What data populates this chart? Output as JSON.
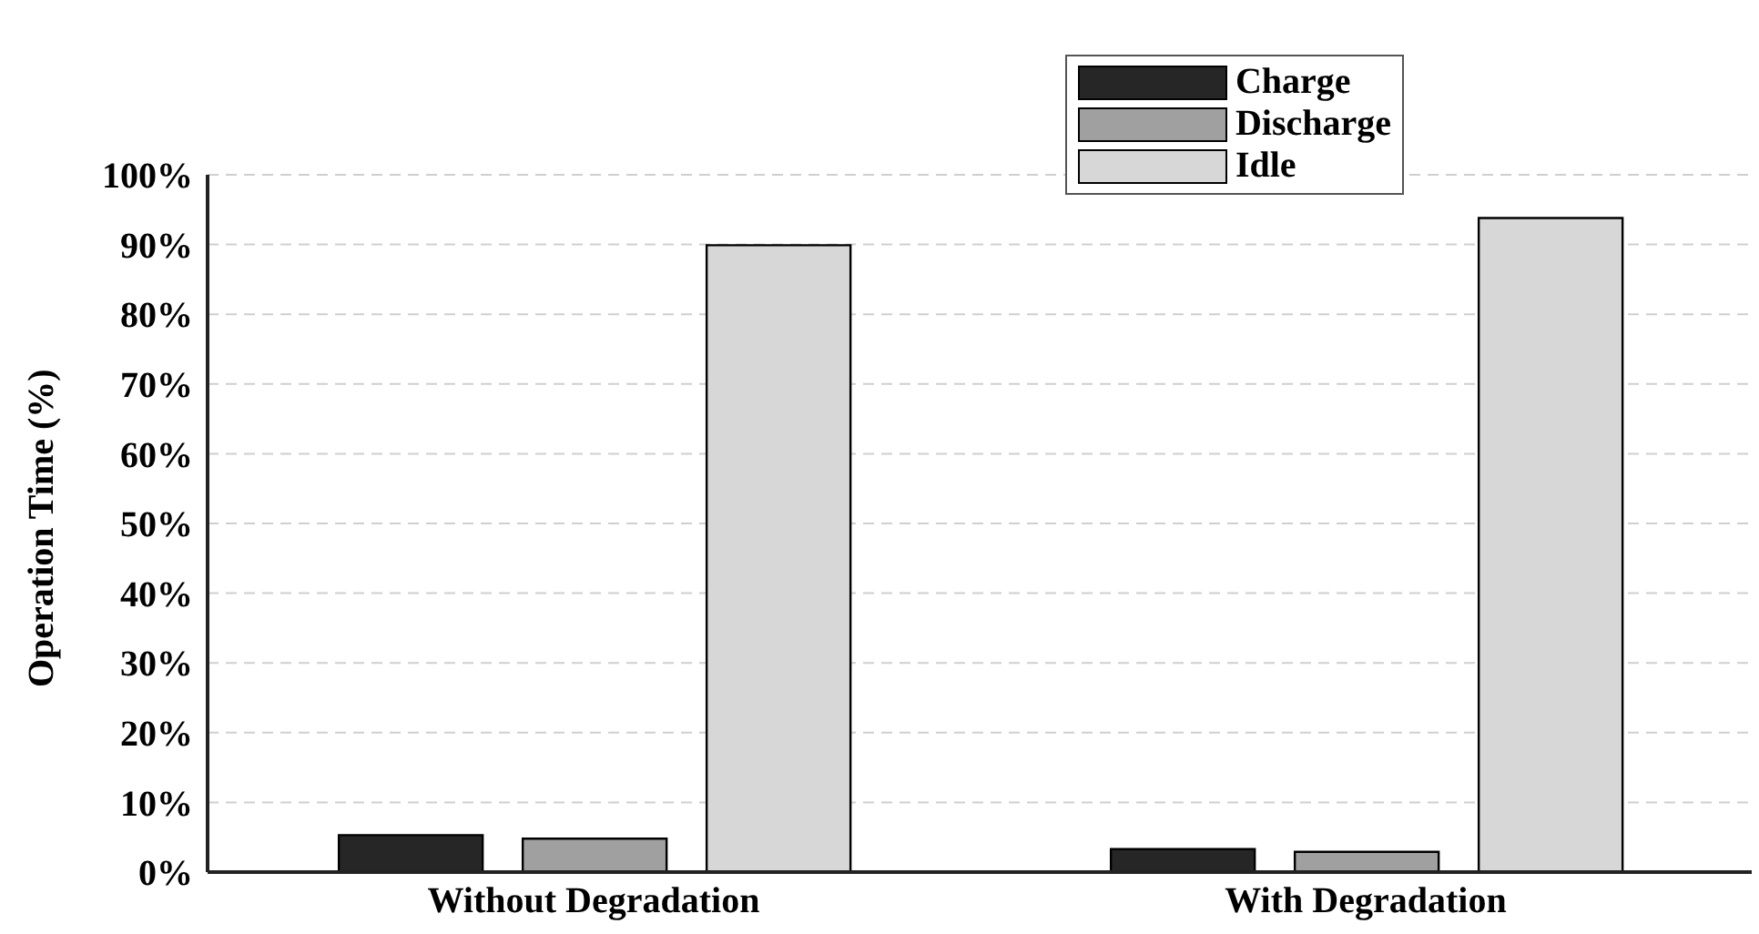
{
  "chart_data": {
    "type": "bar",
    "ylabel": "Operation Time (%)",
    "categories": [
      "Without Degradation",
      "With Degradation"
    ],
    "series": [
      {
        "name": "Charge",
        "color": "#262626",
        "values": [
          5.3,
          3.3
        ]
      },
      {
        "name": "Discharge",
        "color": "#a0a0a0",
        "values": [
          4.8,
          2.9
        ]
      },
      {
        "name": "Idle",
        "color": "#d7d7d7",
        "values": [
          89.9,
          93.8
        ]
      }
    ],
    "ylim": [
      0,
      100
    ],
    "yticks": [
      {
        "value": 0,
        "label": "0%"
      },
      {
        "value": 10,
        "label": "10%"
      },
      {
        "value": 20,
        "label": "20%"
      },
      {
        "value": 30,
        "label": "30%"
      },
      {
        "value": 40,
        "label": "40%"
      },
      {
        "value": 50,
        "label": "50%"
      },
      {
        "value": 60,
        "label": "60%"
      },
      {
        "value": 70,
        "label": "70%"
      },
      {
        "value": 80,
        "label": "80%"
      },
      {
        "value": 90,
        "label": "90%"
      },
      {
        "value": 100,
        "label": "100%"
      }
    ],
    "grid": "y",
    "legend": "top right"
  }
}
